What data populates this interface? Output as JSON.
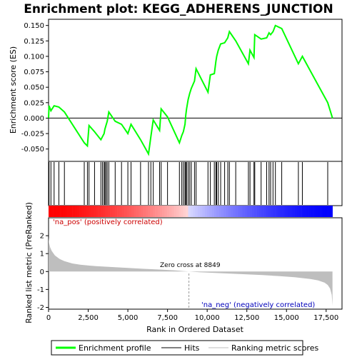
{
  "chart_data": {
    "type": "line",
    "title": "Enrichment plot: KEGG_ADHERENS_JUNCTION",
    "xlabel": "Rank in Ordered Dataset",
    "ylabel_top": "Enrichment score (ES)",
    "ylabel_bottom": "Ranked list metric (PreRanked)",
    "xlim": [
      0,
      18500
    ],
    "ylim_top": [
      -0.07,
      0.16
    ],
    "ylim_bottom": [
      -2.1,
      3.0
    ],
    "x_ticks": [
      0,
      2500,
      5000,
      7500,
      10000,
      12500,
      15000,
      17500
    ],
    "x_tick_labels": [
      "0",
      "2,500",
      "5,000",
      "7,500",
      "10,000",
      "12,500",
      "15,000",
      "17,500"
    ],
    "y_ticks_top": [
      -0.05,
      -0.025,
      0.0,
      0.025,
      0.05,
      0.075,
      0.1,
      0.125,
      0.15
    ],
    "y_tick_labels_top": [
      "-0.050",
      "-0.025",
      "0.000",
      "0.025",
      "0.050",
      "0.075",
      "0.100",
      "0.125",
      "0.150"
    ],
    "y_ticks_bottom": [
      -2,
      -1,
      0,
      1,
      2
    ],
    "y_tick_labels_bottom": [
      "-2",
      "-1",
      "0",
      "1",
      "2"
    ],
    "total_rank": 17900,
    "zero_cross": 8849,
    "zero_cross_label": "Zero cross at 8849",
    "pos_label": "'na_pos' (positively correlated)",
    "neg_label": "'na_neg' (negatively correlated)",
    "hits": [
      30,
      150,
      350,
      650,
      1000,
      2250,
      2450,
      2550,
      2900,
      3300,
      3400,
      3500,
      3550,
      3620,
      3700,
      3800,
      4200,
      4600,
      5000,
      5200,
      5800,
      6300,
      6450,
      6600,
      7000,
      7100,
      7500,
      8250,
      8400,
      8500,
      8600,
      8650,
      8700,
      8800,
      8900,
      9000,
      9200,
      9300,
      10050,
      10200,
      10450,
      10550,
      10600,
      10700,
      10850,
      11100,
      11300,
      11400,
      11800,
      12600,
      12700,
      12950,
      13000,
      13400,
      13750,
      13900,
      14000,
      14150,
      14300,
      14700,
      15750,
      16000,
      17600
    ],
    "es_curve": [
      [
        0,
        0
      ],
      [
        30,
        0.02
      ],
      [
        150,
        0.012
      ],
      [
        350,
        0.02
      ],
      [
        650,
        0.018
      ],
      [
        1000,
        0.01
      ],
      [
        2250,
        -0.04
      ],
      [
        2450,
        -0.045
      ],
      [
        2550,
        -0.012
      ],
      [
        2900,
        -0.022
      ],
      [
        3300,
        -0.035
      ],
      [
        3400,
        -0.03
      ],
      [
        3500,
        -0.025
      ],
      [
        3550,
        -0.018
      ],
      [
        3620,
        -0.012
      ],
      [
        3700,
        -0.005
      ],
      [
        3800,
        0.01
      ],
      [
        4200,
        -0.005
      ],
      [
        4600,
        -0.01
      ],
      [
        5000,
        -0.025
      ],
      [
        5200,
        -0.01
      ],
      [
        5800,
        -0.035
      ],
      [
        6300,
        -0.058
      ],
      [
        6450,
        -0.03
      ],
      [
        6600,
        -0.003
      ],
      [
        7000,
        -0.02
      ],
      [
        7100,
        0.015
      ],
      [
        7500,
        0.002
      ],
      [
        8250,
        -0.04
      ],
      [
        8400,
        -0.028
      ],
      [
        8500,
        -0.022
      ],
      [
        8600,
        -0.01
      ],
      [
        8650,
        0.005
      ],
      [
        8700,
        0.015
      ],
      [
        8800,
        0.03
      ],
      [
        8900,
        0.04
      ],
      [
        9000,
        0.048
      ],
      [
        9200,
        0.06
      ],
      [
        9300,
        0.08
      ],
      [
        10050,
        0.042
      ],
      [
        10200,
        0.07
      ],
      [
        10450,
        0.072
      ],
      [
        10550,
        0.092
      ],
      [
        10600,
        0.1
      ],
      [
        10700,
        0.11
      ],
      [
        10850,
        0.12
      ],
      [
        11100,
        0.122
      ],
      [
        11300,
        0.13
      ],
      [
        11400,
        0.14
      ],
      [
        11800,
        0.125
      ],
      [
        12600,
        0.088
      ],
      [
        12700,
        0.11
      ],
      [
        12950,
        0.098
      ],
      [
        13000,
        0.135
      ],
      [
        13400,
        0.128
      ],
      [
        13750,
        0.13
      ],
      [
        13900,
        0.138
      ],
      [
        14000,
        0.135
      ],
      [
        14150,
        0.14
      ],
      [
        14300,
        0.15
      ],
      [
        14700,
        0.145
      ],
      [
        15750,
        0.088
      ],
      [
        16000,
        0.1
      ],
      [
        17600,
        0.025
      ],
      [
        17900,
        0
      ]
    ],
    "metric_curve": [
      [
        0,
        1.9
      ],
      [
        30,
        1.6
      ],
      [
        100,
        1.35
      ],
      [
        200,
        1.15
      ],
      [
        400,
        0.9
      ],
      [
        700,
        0.7
      ],
      [
        1000,
        0.58
      ],
      [
        1500,
        0.45
      ],
      [
        2000,
        0.38
      ],
      [
        3000,
        0.3
      ],
      [
        4000,
        0.25
      ],
      [
        5000,
        0.2
      ],
      [
        6000,
        0.15
      ],
      [
        7000,
        0.11
      ],
      [
        8000,
        0.06
      ],
      [
        8849,
        0.0
      ],
      [
        9500,
        -0.04
      ],
      [
        10500,
        -0.08
      ],
      [
        11500,
        -0.12
      ],
      [
        12500,
        -0.16
      ],
      [
        13500,
        -0.2
      ],
      [
        14500,
        -0.25
      ],
      [
        15500,
        -0.32
      ],
      [
        16500,
        -0.42
      ],
      [
        17000,
        -0.5
      ],
      [
        17400,
        -0.62
      ],
      [
        17600,
        -0.75
      ],
      [
        17750,
        -0.95
      ],
      [
        17850,
        -1.3
      ],
      [
        17900,
        -1.9
      ]
    ],
    "legend": [
      "Enrichment profile",
      "Hits",
      "Ranking metric scores"
    ],
    "legend_placement": "bottom",
    "colors": {
      "es_line": "#00ff00",
      "hits": "#000000",
      "metric_fill": "#bebebe",
      "bar_pos": "#ff0000",
      "bar_neg": "#0000ff",
      "zero_line": "#999999"
    }
  }
}
